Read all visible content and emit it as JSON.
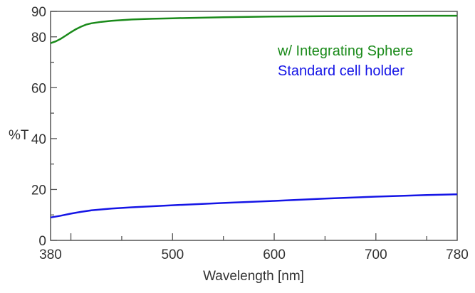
{
  "chart_data": {
    "type": "line",
    "title": "",
    "xlabel": "Wavelength [nm]",
    "ylabel": "%T",
    "xlim": [
      380,
      780
    ],
    "ylim": [
      0,
      90
    ],
    "xticks": [
      380,
      500,
      600,
      700,
      780
    ],
    "yticks": [
      0,
      20,
      40,
      60,
      80,
      90
    ],
    "grid": false,
    "legend": "top-right",
    "series": [
      {
        "name": "w/ Integrating Sphere",
        "color": "#1a8a1a",
        "x": [
          380,
          385,
          390,
          395,
          400,
          405,
          410,
          415,
          420,
          430,
          440,
          460,
          480,
          500,
          550,
          600,
          650,
          700,
          750,
          780
        ],
        "y": [
          77.5,
          78.2,
          79.2,
          80.5,
          81.8,
          83,
          84,
          84.8,
          85.3,
          85.9,
          86.3,
          86.8,
          87.1,
          87.3,
          87.7,
          88,
          88.1,
          88.2,
          88.3,
          88.3
        ]
      },
      {
        "name": "Standard cell holder",
        "color": "#1515e6",
        "x": [
          380,
          390,
          400,
          410,
          420,
          440,
          460,
          500,
          550,
          600,
          650,
          700,
          750,
          780
        ],
        "y": [
          9,
          9.7,
          10.5,
          11.2,
          11.8,
          12.5,
          13,
          13.8,
          14.7,
          15.5,
          16.4,
          17.2,
          17.8,
          18.1
        ]
      }
    ]
  }
}
